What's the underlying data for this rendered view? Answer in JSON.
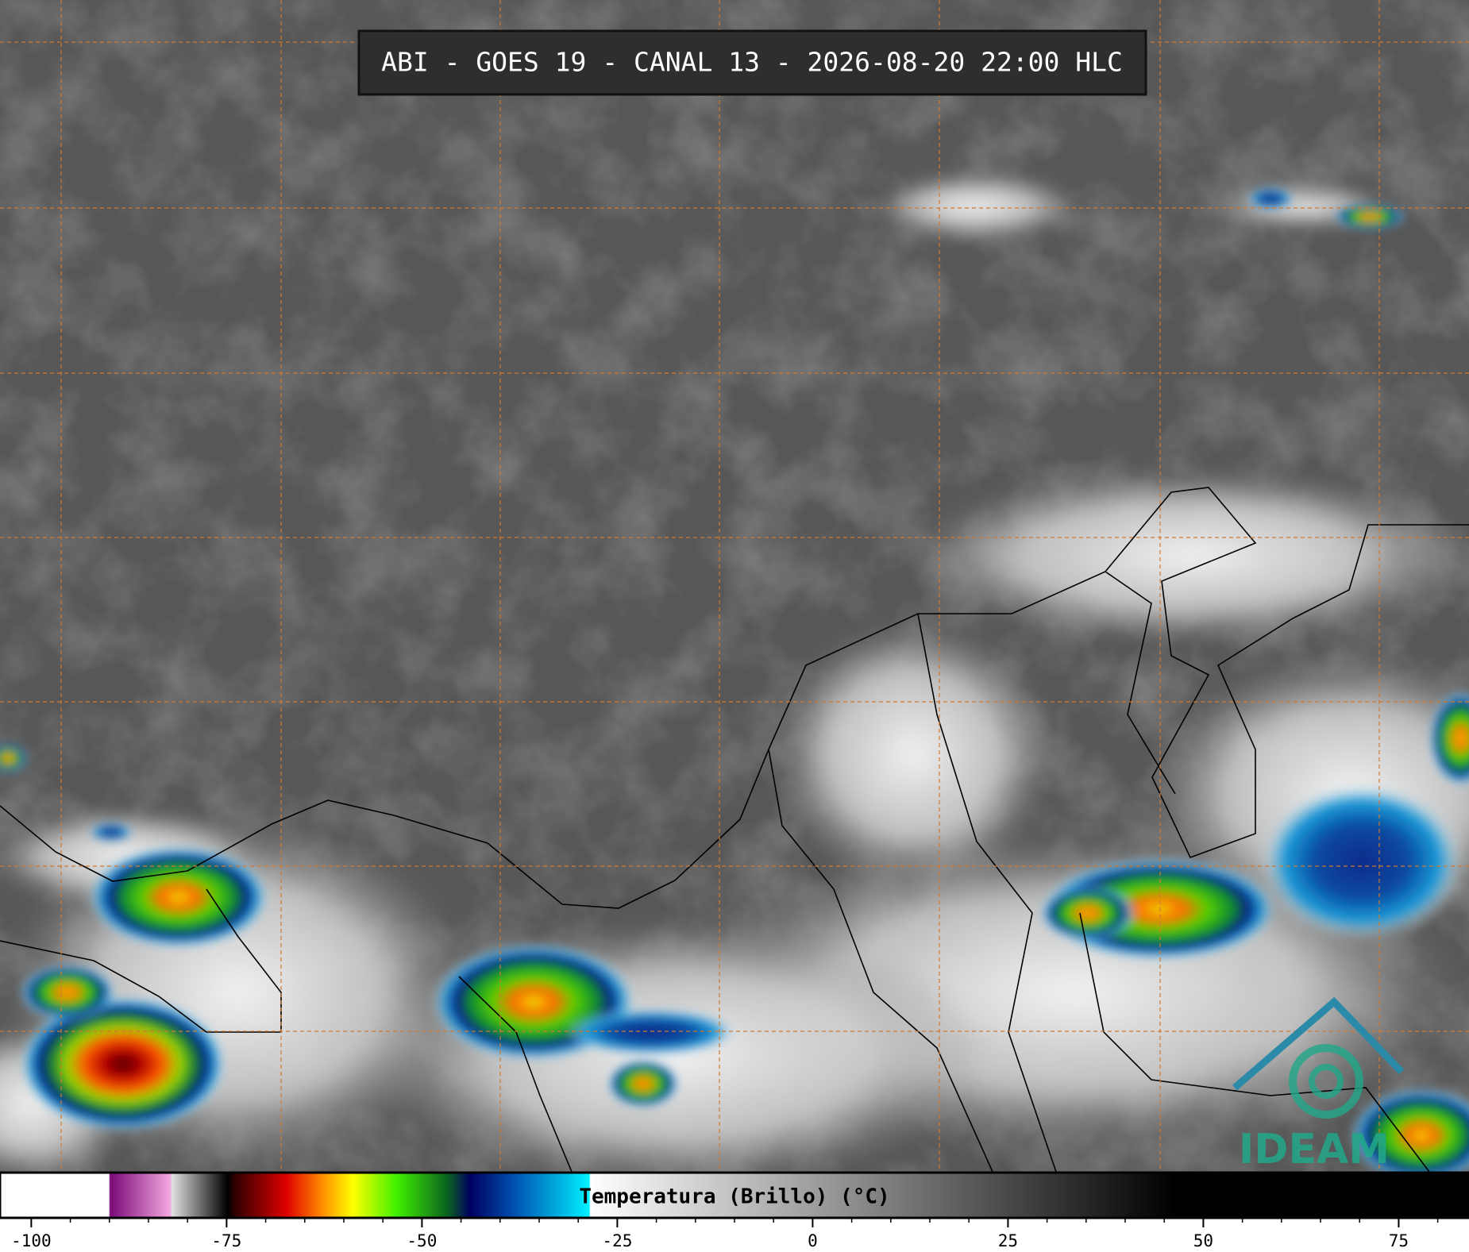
{
  "header": {
    "title": "ABI - GOES 19 - CANAL 13 - 2026-08-20 22:00 HLC"
  },
  "colorbar": {
    "label": "Temperatura (Brillo) (°C)",
    "range": [
      -104,
      84
    ],
    "ticks": [
      -100,
      -75,
      -50,
      -25,
      0,
      25,
      50,
      75
    ]
  },
  "logo": {
    "text": "IDEAM"
  }
}
